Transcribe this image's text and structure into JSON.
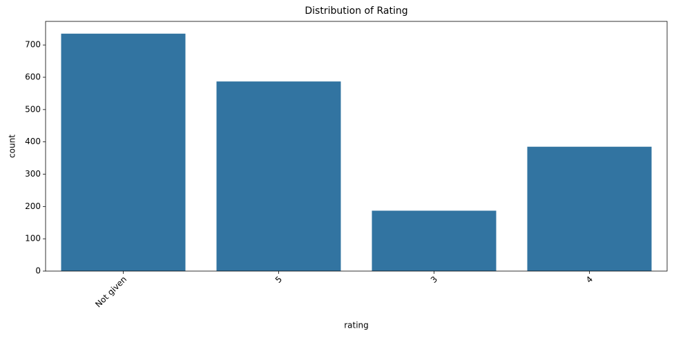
{
  "chart_data": {
    "type": "bar",
    "title": "Distribution of Rating",
    "x_label": "rating",
    "y_label": "count",
    "categories": [
      "Not given",
      "5",
      "3",
      "4"
    ],
    "values": [
      735,
      587,
      187,
      385
    ],
    "color": "#3274a1",
    "ylim": [
      0,
      773
    ],
    "yticks": [
      0,
      100,
      200,
      300,
      400,
      500,
      600,
      700
    ],
    "grid": false
  }
}
